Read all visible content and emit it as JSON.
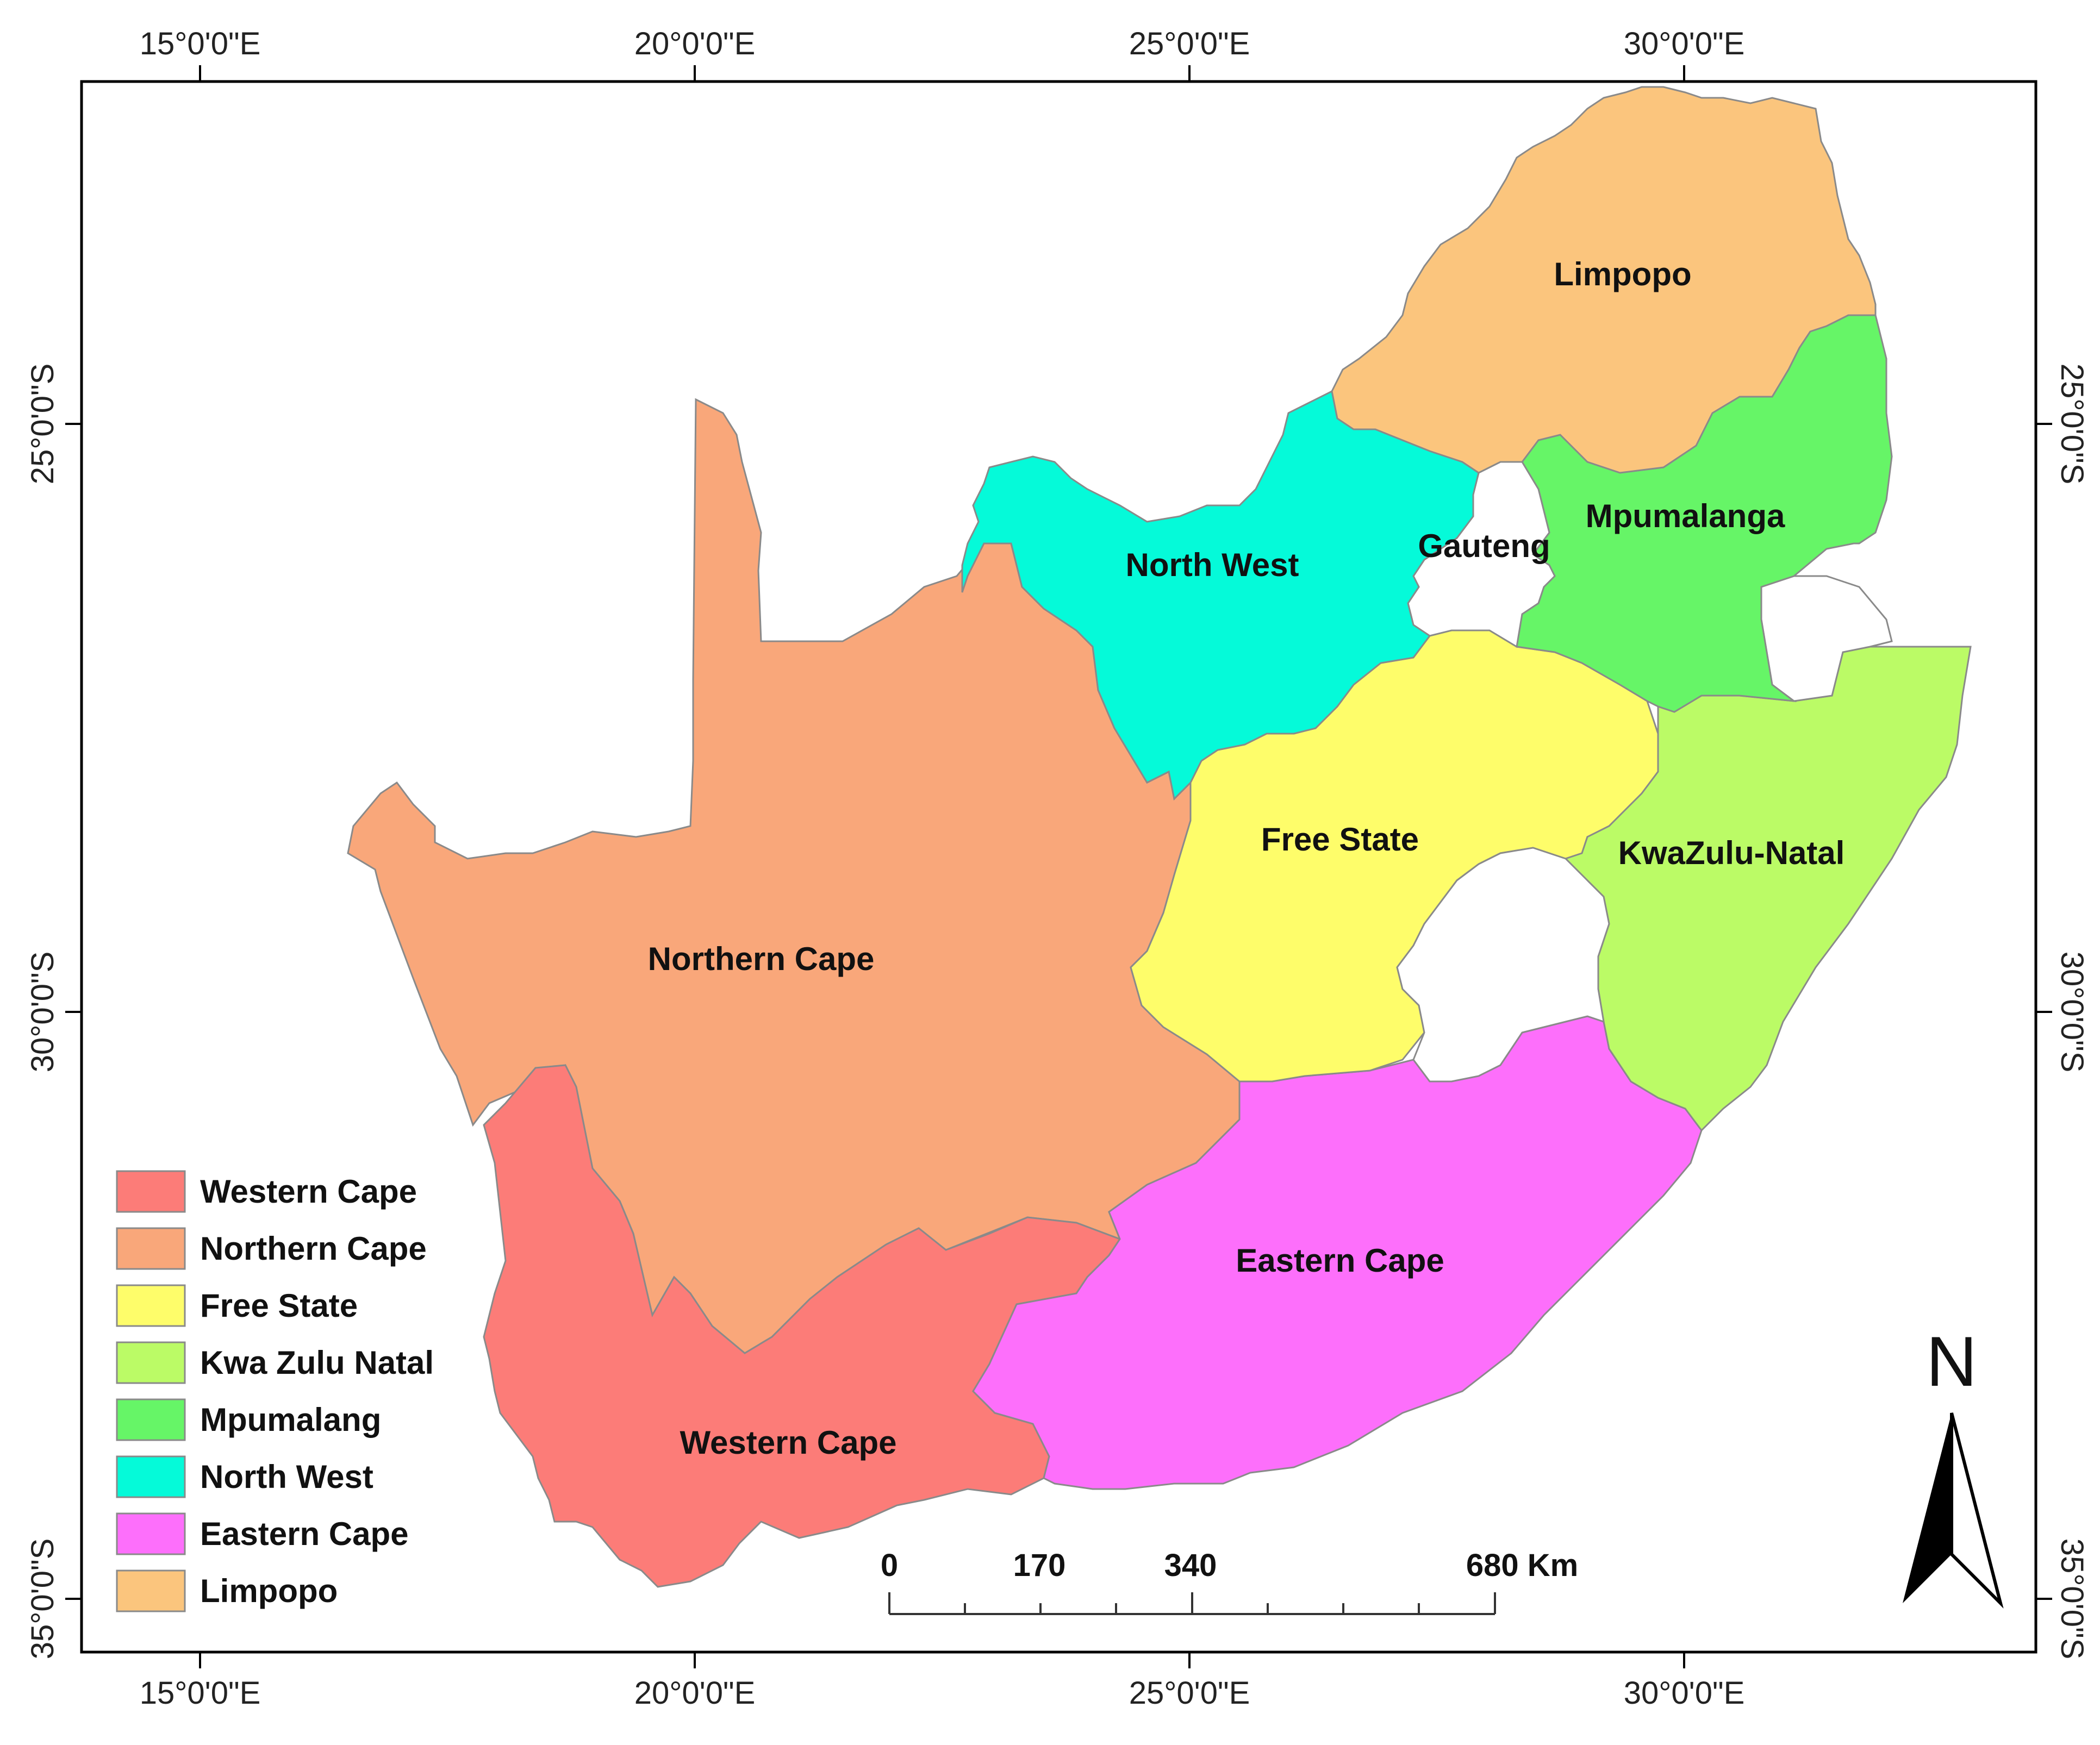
{
  "map": {
    "top_axis": [
      "15°0'0\"E",
      "20°0'0\"E",
      "25°0'0\"E",
      "30°0'0\"E"
    ],
    "bottom_axis": [
      "15°0'0\"E",
      "20°0'0\"E",
      "25°0'0\"E",
      "30°0'0\"E"
    ],
    "left_axis": [
      "25°0'0\"S",
      "30°0'0\"S",
      "35°0'0\"S"
    ],
    "right_axis": [
      "25°0'0\"S",
      "30°0'0\"S",
      "35°0'0\"S"
    ],
    "provinces": {
      "limpopo": {
        "label": "Limpopo",
        "color": "#fbc57d"
      },
      "mpumalanga": {
        "label": "Mpumalanga",
        "color": "#66f567"
      },
      "gauteng": {
        "label": "Gauteng",
        "color": "#ffffff"
      },
      "north_west": {
        "label": "North West",
        "color": "#05fad9"
      },
      "free_state": {
        "label": "Free State",
        "color": "#fefd6a"
      },
      "kwazulu_natal": {
        "label": "KwaZulu-Natal",
        "color": "#bbfb66"
      },
      "northern_cape": {
        "label": "Northern Cape",
        "color": "#f9a77a"
      },
      "eastern_cape": {
        "label": "Eastern Cape",
        "color": "#fd6ffb"
      },
      "western_cape": {
        "label": "Western Cape",
        "color": "#fc7c78"
      }
    },
    "legend": [
      {
        "label": "Western Cape",
        "color": "#fc7c78"
      },
      {
        "label": "Northern Cape",
        "color": "#f9a77a"
      },
      {
        "label": "Free State",
        "color": "#fefd6a"
      },
      {
        "label": "Kwa Zulu Natal",
        "color": "#bbfb66"
      },
      {
        "label": "Mpumalang",
        "color": "#66f567"
      },
      {
        "label": "North West",
        "color": "#05fad9"
      },
      {
        "label": "Eastern Cape",
        "color": "#fd6ffb"
      },
      {
        "label": "Limpopo",
        "color": "#fbc57d"
      }
    ],
    "scale_bar": {
      "labels": [
        "0",
        "170",
        "340",
        "680 Km"
      ]
    },
    "north_arrow": {
      "label": "N"
    }
  }
}
